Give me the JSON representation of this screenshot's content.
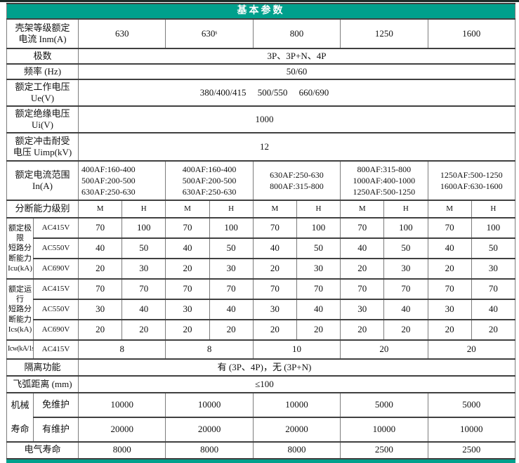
{
  "title": "基本参数",
  "colors": {
    "accent": "#00A08C",
    "topline": "#1c2b27"
  },
  "inm": {
    "label": "壳架等级额定\n电流 Inm(A)",
    "values": [
      "630",
      "630ˢ",
      "800",
      "1250",
      "1600"
    ]
  },
  "poles": {
    "label": "极数",
    "value": "3P、3P+N、4P"
  },
  "freq": {
    "label": "频率 (Hz)",
    "value": "50/60"
  },
  "ue": {
    "label": "额定工作电压\nUe(V)",
    "value": "380/400/415     500/550     660/690"
  },
  "ui": {
    "label": "额定绝缘电压\nUi(V)",
    "value": "1000"
  },
  "uimp": {
    "label": "额定冲击耐受\n电压 Uimp(kV)",
    "value": "12"
  },
  "in_range": {
    "label": "额定电流范围\nIn(A)",
    "values": [
      [
        "400AF:160-400",
        "500AF:200-500",
        "630AF:250-630"
      ],
      [
        "400AF:160-400",
        "500AF:200-500",
        "630AF:250-630"
      ],
      [
        "630AF:250-630",
        "800AF:315-800"
      ],
      [
        "800AF:315-800",
        "1000AF:400-1000",
        "1250AF:500-1250"
      ],
      [
        "1250AF:500-1250",
        "1600AF:630-1600"
      ]
    ]
  },
  "breaking_grade": {
    "label": "分断能力级别",
    "values": [
      "M",
      "H",
      "M",
      "H",
      "M",
      "H",
      "M",
      "H",
      "M",
      "H"
    ]
  },
  "icu": {
    "label": "额定极限\n短路分\n断能力\nIcu(kA)",
    "rows": [
      {
        "sub": "AC415V",
        "values": [
          "70",
          "100",
          "70",
          "100",
          "70",
          "100",
          "70",
          "100",
          "70",
          "100"
        ]
      },
      {
        "sub": "AC550V",
        "values": [
          "40",
          "50",
          "40",
          "50",
          "40",
          "50",
          "40",
          "50",
          "40",
          "50"
        ]
      },
      {
        "sub": "AC690V",
        "values": [
          "20",
          "30",
          "20",
          "30",
          "20",
          "30",
          "20",
          "30",
          "20",
          "30"
        ]
      }
    ]
  },
  "ics": {
    "label": "额定运行\n短路分\n断能力\nIcs(kA)",
    "rows": [
      {
        "sub": "AC415V",
        "values": [
          "70",
          "70",
          "70",
          "70",
          "70",
          "70",
          "70",
          "70",
          "70",
          "70"
        ]
      },
      {
        "sub": "AC550V",
        "values": [
          "30",
          "40",
          "30",
          "40",
          "30",
          "40",
          "30",
          "40",
          "30",
          "40"
        ]
      },
      {
        "sub": "AC690V",
        "values": [
          "20",
          "20",
          "20",
          "20",
          "20",
          "20",
          "20",
          "20",
          "20",
          "20"
        ]
      }
    ]
  },
  "icw": {
    "label": "Icw(kA/1s)",
    "sub": "AC415V",
    "values": [
      "8",
      "8",
      "10",
      "20",
      "20"
    ]
  },
  "isolation": {
    "label": "隔离功能",
    "value": "有 (3P、4P)，无 (3P+N)"
  },
  "arc": {
    "label": "飞弧距离 (mm)",
    "value": "≤100"
  },
  "mech_life": {
    "label": "机械\n寿命",
    "rows": [
      {
        "sub": "免维护",
        "values": [
          "10000",
          "10000",
          "10000",
          "5000",
          "5000"
        ]
      },
      {
        "sub": "有维护",
        "values": [
          "20000",
          "20000",
          "20000",
          "10000",
          "10000"
        ]
      }
    ]
  },
  "elec_life": {
    "label": "电气寿命",
    "values": [
      "8000",
      "8000",
      "8000",
      "2500",
      "2500"
    ]
  }
}
